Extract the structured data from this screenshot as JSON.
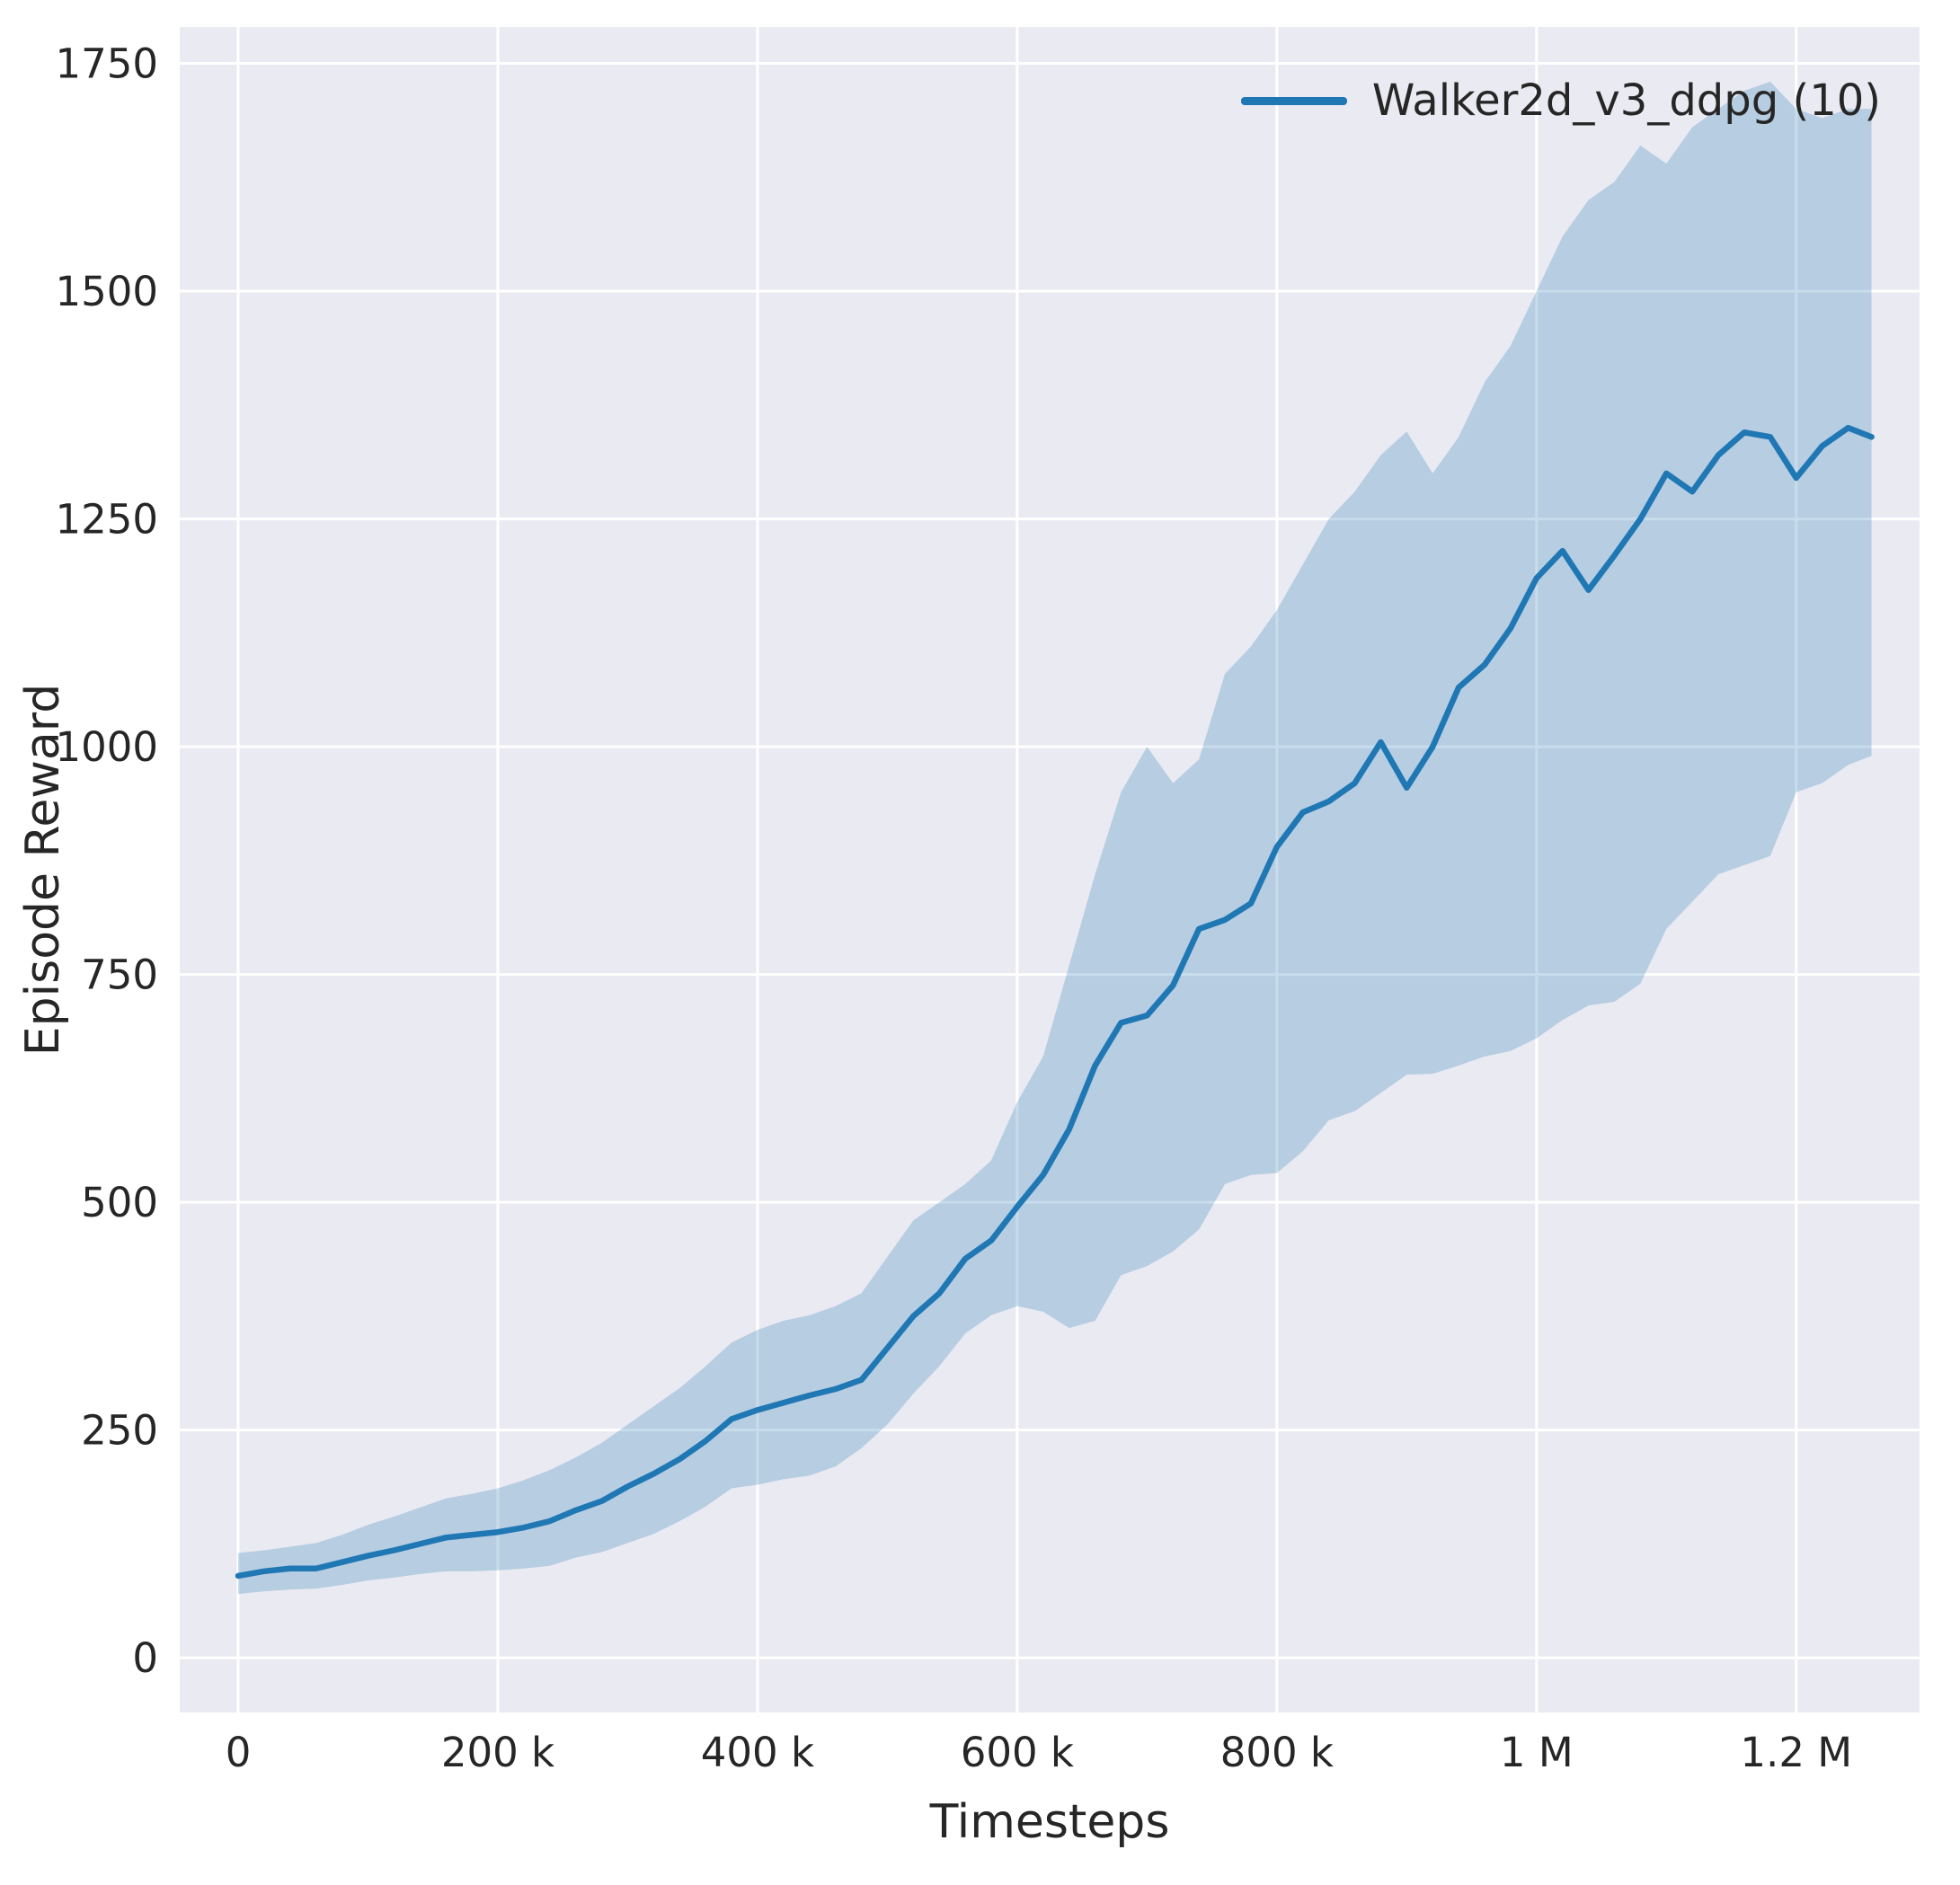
{
  "chart_data": {
    "type": "line",
    "title": "",
    "xlabel": "Timesteps",
    "ylabel": "Episode Reward",
    "xlim": [
      -45000,
      1295000
    ],
    "ylim": [
      -60,
      1790
    ],
    "x_ticks": [
      0,
      200000,
      400000,
      600000,
      800000,
      1000000,
      1200000
    ],
    "x_tick_labels": [
      "0",
      "200 k",
      "400 k",
      "600 k",
      "800 k",
      "1 M",
      "1.2 M"
    ],
    "y_ticks": [
      0,
      250,
      500,
      750,
      1000,
      1250,
      1500,
      1750
    ],
    "y_tick_labels": [
      "0",
      "250",
      "500",
      "750",
      "1000",
      "1250",
      "1500",
      "1750"
    ],
    "grid": true,
    "legend_position": "upper right",
    "style": {
      "axes_background": "#eaeaf2",
      "grid_color": "#ffffff",
      "text_color": "#262626",
      "line_color": "#1f77b4",
      "band_color": "#1f77b4",
      "band_opacity": 0.25
    },
    "series": [
      {
        "name": "Walker2d_v3_ddpg (10)",
        "color": "#1f77b4",
        "x": [
          0,
          20000,
          40000,
          60000,
          80000,
          100000,
          120000,
          140000,
          160000,
          180000,
          200000,
          220000,
          240000,
          260000,
          280000,
          300000,
          320000,
          340000,
          360000,
          380000,
          400000,
          420000,
          440000,
          460000,
          480000,
          500000,
          520000,
          540000,
          560000,
          580000,
          600000,
          620000,
          640000,
          660000,
          680000,
          700000,
          720000,
          740000,
          760000,
          780000,
          800000,
          820000,
          840000,
          860000,
          880000,
          900000,
          920000,
          940000,
          960000,
          980000,
          1000000,
          1020000,
          1040000,
          1060000,
          1080000,
          1100000,
          1120000,
          1140000,
          1160000,
          1180000,
          1200000,
          1220000,
          1240000,
          1258000
        ],
        "mean": [
          90,
          95,
          98,
          98,
          105,
          112,
          118,
          125,
          132,
          135,
          138,
          143,
          150,
          162,
          172,
          188,
          202,
          218,
          238,
          262,
          272,
          280,
          288,
          295,
          305,
          340,
          375,
          400,
          438,
          458,
          495,
          530,
          580,
          650,
          697,
          705,
          738,
          800,
          810,
          828,
          890,
          928,
          940,
          960,
          1005,
          955,
          1000,
          1065,
          1090,
          1130,
          1185,
          1215,
          1172,
          1210,
          1250,
          1300,
          1280,
          1320,
          1345,
          1340,
          1295,
          1330,
          1350,
          1340
        ],
        "band_lower": [
          70,
          73,
          75,
          76,
          80,
          85,
          88,
          92,
          95,
          95,
          96,
          98,
          101,
          110,
          116,
          126,
          136,
          150,
          166,
          186,
          190,
          196,
          200,
          210,
          230,
          256,
          290,
          320,
          356,
          376,
          386,
          380,
          362,
          370,
          420,
          430,
          446,
          470,
          520,
          530,
          532,
          556,
          590,
          600,
          620,
          640,
          641,
          650,
          660,
          666,
          680,
          700,
          716,
          720,
          740,
          800,
          830,
          860,
          870,
          880,
          950,
          960,
          980,
          990
        ],
        "band_upper": [
          115,
          118,
          122,
          126,
          135,
          146,
          155,
          165,
          175,
          180,
          186,
          195,
          206,
          220,
          236,
          256,
          276,
          296,
          320,
          346,
          360,
          370,
          376,
          386,
          400,
          440,
          480,
          500,
          520,
          546,
          610,
          660,
          760,
          860,
          950,
          1000,
          960,
          986,
          1080,
          1110,
          1150,
          1200,
          1250,
          1280,
          1320,
          1346,
          1300,
          1340,
          1400,
          1440,
          1500,
          1560,
          1600,
          1620,
          1660,
          1640,
          1680,
          1700,
          1720,
          1730,
          1700,
          1690,
          1700,
          1700
        ]
      }
    ]
  }
}
